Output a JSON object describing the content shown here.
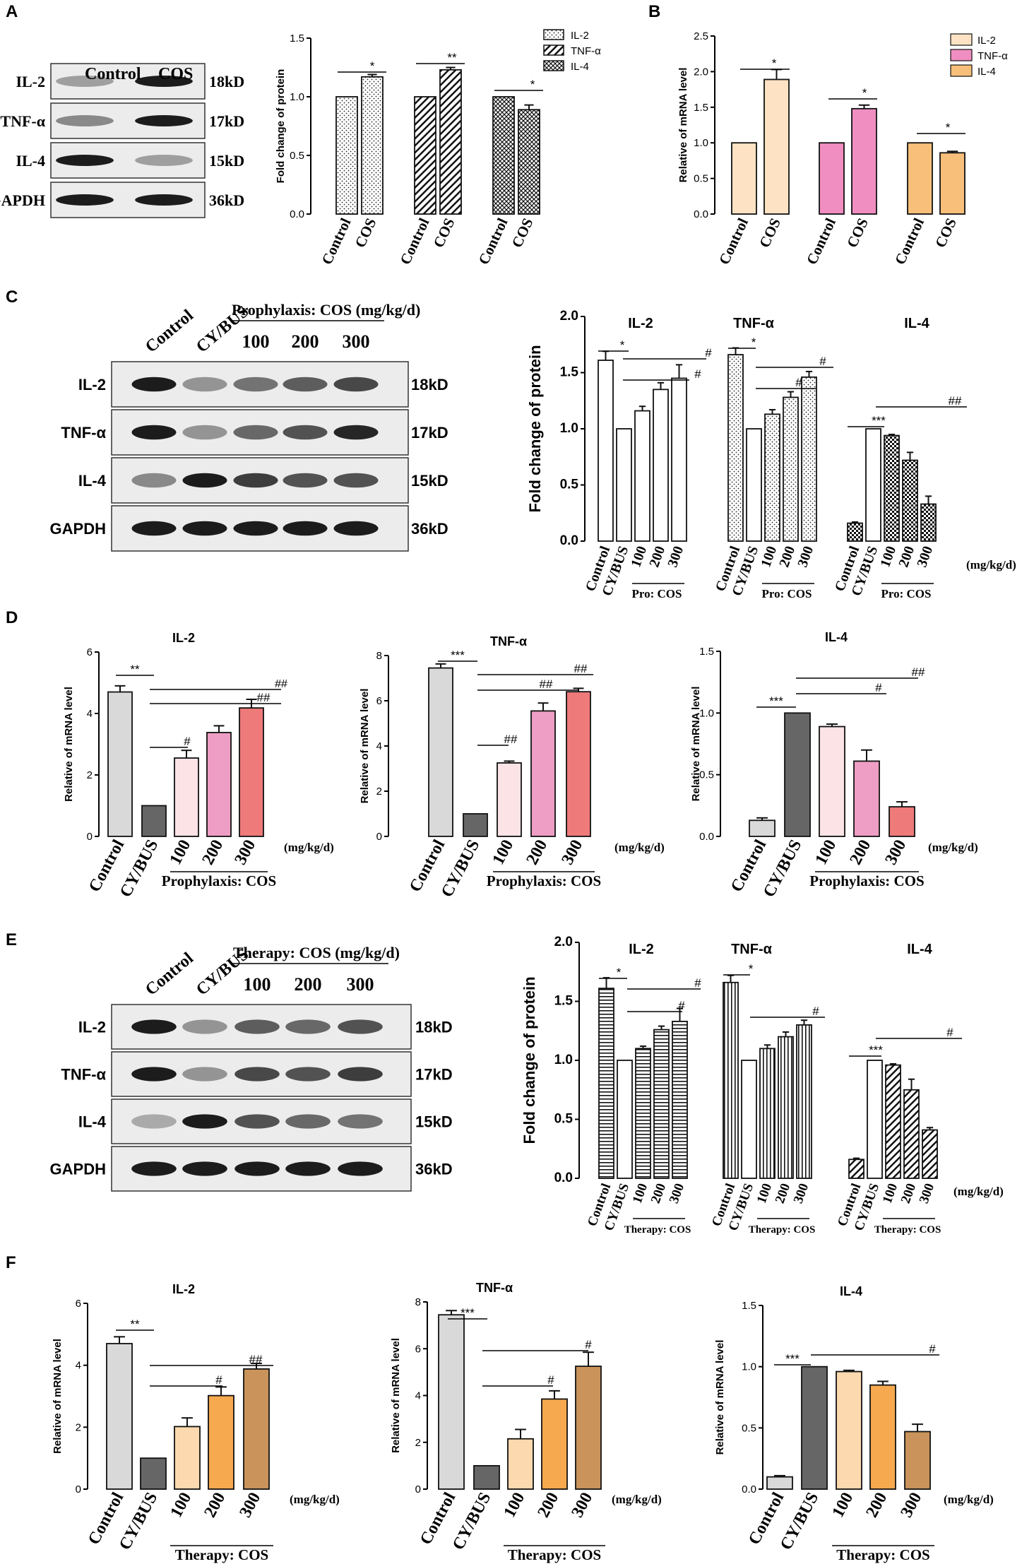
{
  "figure": {
    "panel_labels": [
      "A",
      "B",
      "C",
      "D",
      "E",
      "F"
    ]
  },
  "colors": {
    "bar_black": "#111111",
    "control_gray": "#d9d9d9",
    "cybus_gray": "#666666",
    "pink_light": "#fbe3e6",
    "pink_mid": "#ee9ec4",
    "salmon": "#ee7a7a",
    "peach": "#fcd9ae",
    "orange": "#f7a94f",
    "tan": "#c9935b",
    "b_il2": "#fde3c4",
    "b_tnf": "#f08ec1",
    "b_il4": "#f7bf7a"
  },
  "westerns": [
    {
      "id": "blotA",
      "lanes": [
        "Control",
        "COS"
      ],
      "header_extra": "",
      "rows": [
        {
          "label": "IL-2",
          "size": "18kD"
        },
        {
          "label": "TNF-α",
          "size": "17kD"
        },
        {
          "label": "IL-4",
          "size": "15kD"
        },
        {
          "label": "GAPDH",
          "size": "36kD"
        }
      ]
    },
    {
      "id": "blotC",
      "lanes": [
        "Control",
        "CY/BUS"
      ],
      "header_extra": "Prophylaxis: COS (mg/kg/d)",
      "doses": [
        "100",
        "200",
        "300"
      ],
      "rows": [
        {
          "label": "IL-2",
          "size": "18kD"
        },
        {
          "label": "TNF-α",
          "size": "17kD"
        },
        {
          "label": "IL-4",
          "size": "15kD"
        },
        {
          "label": "GAPDH",
          "size": "36kD"
        }
      ]
    },
    {
      "id": "blotE",
      "lanes": [
        "Control",
        "CY/BUS"
      ],
      "header_extra": "Therapy: COS (mg/kg/d)",
      "doses": [
        "100",
        "200",
        "300"
      ],
      "rows": [
        {
          "label": "IL-2",
          "size": "18kD"
        },
        {
          "label": "TNF-α",
          "size": "17kD"
        },
        {
          "label": "IL-4",
          "size": "15kD"
        },
        {
          "label": "GAPDH",
          "size": "36kD"
        }
      ]
    }
  ],
  "chart_data": [
    {
      "id": "A_bar",
      "type": "bar",
      "ylabel": "Fold change of protein",
      "ylim": [
        0,
        1.5
      ],
      "yticks": [
        "0.0",
        "0.5",
        "1.0",
        "1.5"
      ],
      "groups": [
        {
          "name": "IL-2",
          "categories": [
            "Control",
            "COS"
          ],
          "values": [
            1.0,
            1.17
          ],
          "errors": [
            0,
            0.02
          ],
          "sig": [
            {
              "text": "*"
            }
          ]
        },
        {
          "name": "TNF-α",
          "categories": [
            "Control",
            "COS"
          ],
          "values": [
            1.0,
            1.23
          ],
          "errors": [
            0,
            0.02
          ],
          "sig": [
            {
              "text": "**"
            }
          ]
        },
        {
          "name": "IL-4",
          "categories": [
            "Control",
            "COS"
          ],
          "values": [
            1.0,
            0.89
          ],
          "errors": [
            0,
            0.04
          ],
          "sig": [
            {
              "text": "*"
            }
          ]
        }
      ],
      "legend": [
        "IL-2",
        "TNF-α",
        "IL-4"
      ],
      "legend_position": "top-right"
    },
    {
      "id": "B_bar",
      "type": "bar",
      "ylabel": "Relative of mRNA level",
      "ylim": [
        0,
        2.5
      ],
      "yticks": [
        "0.0",
        "0.5",
        "1.0",
        "1.5",
        "2.0",
        "2.5"
      ],
      "groups": [
        {
          "name": "IL-2",
          "categories": [
            "Control",
            "COS"
          ],
          "values": [
            1.0,
            1.89
          ],
          "errors": [
            0,
            0.14
          ],
          "sig": [
            {
              "text": "*"
            }
          ]
        },
        {
          "name": "TNF-α",
          "categories": [
            "Control",
            "COS"
          ],
          "values": [
            1.0,
            1.48
          ],
          "errors": [
            0,
            0.05
          ],
          "sig": [
            {
              "text": "*"
            }
          ]
        },
        {
          "name": "IL-4",
          "categories": [
            "Control",
            "COS"
          ],
          "values": [
            1.0,
            0.86
          ],
          "errors": [
            0,
            0.02
          ],
          "sig": [
            {
              "text": "*"
            }
          ]
        }
      ],
      "legend": [
        "IL-2",
        "TNF-α",
        "IL-4"
      ],
      "legend_position": "top-right"
    },
    {
      "id": "C_bar",
      "type": "bar",
      "ylabel": "Fold change of protein",
      "ylim": [
        0,
        2.0
      ],
      "yticks": [
        "0.0",
        "0.5",
        "1.0",
        "1.5",
        "2.0"
      ],
      "unit": "(mg/kg/d)",
      "groups": [
        {
          "name": "IL-2",
          "categories": [
            "Control",
            "CY/BUS",
            "100",
            "200",
            "300"
          ],
          "values": [
            1.61,
            1.0,
            1.16,
            1.35,
            1.45
          ],
          "errors": [
            0.08,
            0,
            0.04,
            0.06,
            0.12
          ],
          "sublabel": "Pro: COS",
          "sig": [
            {
              "text": "*"
            },
            {
              "text": "#"
            },
            {
              "text": "#"
            }
          ]
        },
        {
          "name": "TNF-α",
          "categories": [
            "Control",
            "CY/BUS",
            "100",
            "200",
            "300"
          ],
          "values": [
            1.66,
            1.0,
            1.13,
            1.28,
            1.46
          ],
          "errors": [
            0.06,
            0,
            0.04,
            0.05,
            0.05
          ],
          "sublabel": "Pro: COS",
          "sig": [
            {
              "text": "*"
            },
            {
              "text": "#"
            },
            {
              "text": "#"
            }
          ]
        },
        {
          "name": "IL-4",
          "categories": [
            "Control",
            "CY/BUS",
            "100",
            "200",
            "300"
          ],
          "values": [
            0.16,
            1.0,
            0.94,
            0.72,
            0.33
          ],
          "errors": [
            0.01,
            0,
            0.01,
            0.07,
            0.07
          ],
          "sublabel": "Pro: COS",
          "sig": [
            {
              "text": "***"
            },
            {
              "text": "##"
            }
          ]
        }
      ]
    },
    {
      "id": "D_il2",
      "type": "bar",
      "title": "IL-2",
      "ylabel": "Relative of mRNA level",
      "ylim": [
        0,
        6
      ],
      "yticks": [
        "0",
        "2",
        "4",
        "6"
      ],
      "categories": [
        "Control",
        "CY/BUS",
        "100",
        "200",
        "300"
      ],
      "values": [
        4.7,
        1.0,
        2.55,
        3.38,
        4.18
      ],
      "errors": [
        0.2,
        0,
        0.25,
        0.22,
        0.28
      ],
      "unit": "(mg/kg/d)",
      "sublabel": "Prophylaxis: COS",
      "sig": [
        {
          "text": "**"
        },
        {
          "text": "#"
        },
        {
          "text": "##"
        },
        {
          "text": "##"
        }
      ]
    },
    {
      "id": "D_tnf",
      "type": "bar",
      "title": "TNF-α",
      "ylabel": "Relative of mRNA level",
      "ylim": [
        0,
        8
      ],
      "yticks": [
        "0",
        "2",
        "4",
        "6",
        "8"
      ],
      "categories": [
        "Control",
        "CY/BUS",
        "100",
        "200",
        "300"
      ],
      "values": [
        7.45,
        1.0,
        3.25,
        5.55,
        6.4
      ],
      "errors": [
        0.18,
        0,
        0.08,
        0.35,
        0.15
      ],
      "unit": "(mg/kg/d)",
      "sublabel": "Prophylaxis: COS",
      "sig": [
        {
          "text": "***"
        },
        {
          "text": "##"
        },
        {
          "text": "##"
        },
        {
          "text": "##"
        }
      ]
    },
    {
      "id": "D_il4",
      "type": "bar",
      "title": "IL-4",
      "ylabel": "Relative of mRNA level",
      "ylim": [
        0,
        1.5
      ],
      "yticks": [
        "0.0",
        "0.5",
        "1.0",
        "1.5"
      ],
      "categories": [
        "Control",
        "CY/BUS",
        "100",
        "200",
        "300"
      ],
      "values": [
        0.13,
        1.0,
        0.89,
        0.61,
        0.24
      ],
      "errors": [
        0.02,
        0,
        0.02,
        0.09,
        0.04
      ],
      "unit": "(mg/kg/d)",
      "sublabel": "Prophylaxis: COS",
      "sig": [
        {
          "text": "***"
        },
        {
          "text": "#"
        },
        {
          "text": "##"
        }
      ]
    },
    {
      "id": "E_bar",
      "type": "bar",
      "ylabel": "Fold change of protein",
      "ylim": [
        0,
        2.0
      ],
      "yticks": [
        "0.0",
        "0.5",
        "1.0",
        "1.5",
        "2.0"
      ],
      "unit": "(mg/kg/d)",
      "groups": [
        {
          "name": "IL-2",
          "categories": [
            "Control",
            "CY/BUS",
            "100",
            "200",
            "300"
          ],
          "values": [
            1.61,
            1.0,
            1.1,
            1.26,
            1.33
          ],
          "errors": [
            0.09,
            0,
            0.02,
            0.03,
            0.11
          ],
          "sublabel": "Therapy: COS",
          "sig": [
            {
              "text": "*"
            },
            {
              "text": "#"
            },
            {
              "text": "#"
            }
          ]
        },
        {
          "name": "TNF-α",
          "categories": [
            "Control",
            "CY/BUS",
            "100",
            "200",
            "300"
          ],
          "values": [
            1.66,
            1.0,
            1.1,
            1.2,
            1.3
          ],
          "errors": [
            0.06,
            0,
            0.03,
            0.04,
            0.04
          ],
          "sublabel": "Therapy: COS",
          "sig": [
            {
              "text": "*"
            },
            {
              "text": "#"
            }
          ]
        },
        {
          "name": "IL-4",
          "categories": [
            "Control",
            "CY/BUS",
            "100",
            "200",
            "300"
          ],
          "values": [
            0.16,
            1.0,
            0.96,
            0.75,
            0.41
          ],
          "errors": [
            0.01,
            0,
            0.01,
            0.09,
            0.02
          ],
          "sublabel": "Therapy: COS",
          "sig": [
            {
              "text": "***"
            },
            {
              "text": "#"
            }
          ]
        }
      ]
    },
    {
      "id": "F_il2",
      "type": "bar",
      "title": "IL-2",
      "ylabel": "Relative of mRNA level",
      "ylim": [
        0,
        6
      ],
      "yticks": [
        "0",
        "2",
        "4",
        "6"
      ],
      "categories": [
        "Control",
        "CY/BUS",
        "100",
        "200",
        "300"
      ],
      "values": [
        4.7,
        1.0,
        2.02,
        3.02,
        3.88
      ],
      "errors": [
        0.22,
        0,
        0.28,
        0.28,
        0.18
      ],
      "unit": "(mg/kg/d)",
      "sublabel": "Therapy: COS",
      "sig": [
        {
          "text": "**"
        },
        {
          "text": "#"
        },
        {
          "text": "##"
        }
      ]
    },
    {
      "id": "F_tnf",
      "type": "bar",
      "title": "TNF-α",
      "ylabel": "Relative of mRNA level",
      "ylim": [
        0,
        8
      ],
      "yticks": [
        "0",
        "2",
        "4",
        "6",
        "8"
      ],
      "categories": [
        "Control",
        "CY/BUS",
        "100",
        "200",
        "300"
      ],
      "values": [
        7.45,
        1.0,
        2.15,
        3.85,
        5.25
      ],
      "errors": [
        0.18,
        0,
        0.4,
        0.35,
        0.6
      ],
      "unit": "(mg/kg/d)",
      "sublabel": "Therapy: COS",
      "sig": [
        {
          "text": "***"
        },
        {
          "text": "#"
        },
        {
          "text": "#"
        }
      ]
    },
    {
      "id": "F_il4",
      "type": "bar",
      "title": "IL-4",
      "ylabel": "Relative of mRNA level",
      "ylim": [
        0,
        1.5
      ],
      "yticks": [
        "0.0",
        "0.5",
        "1.0",
        "1.5"
      ],
      "categories": [
        "Control",
        "CY/BUS",
        "100",
        "200",
        "300"
      ],
      "values": [
        0.1,
        1.0,
        0.96,
        0.85,
        0.47
      ],
      "errors": [
        0.01,
        0,
        0.01,
        0.03,
        0.06
      ],
      "unit": "(mg/kg/d)",
      "sublabel": "Therapy: COS",
      "sig": [
        {
          "text": "***"
        },
        {
          "text": "#"
        }
      ]
    }
  ]
}
